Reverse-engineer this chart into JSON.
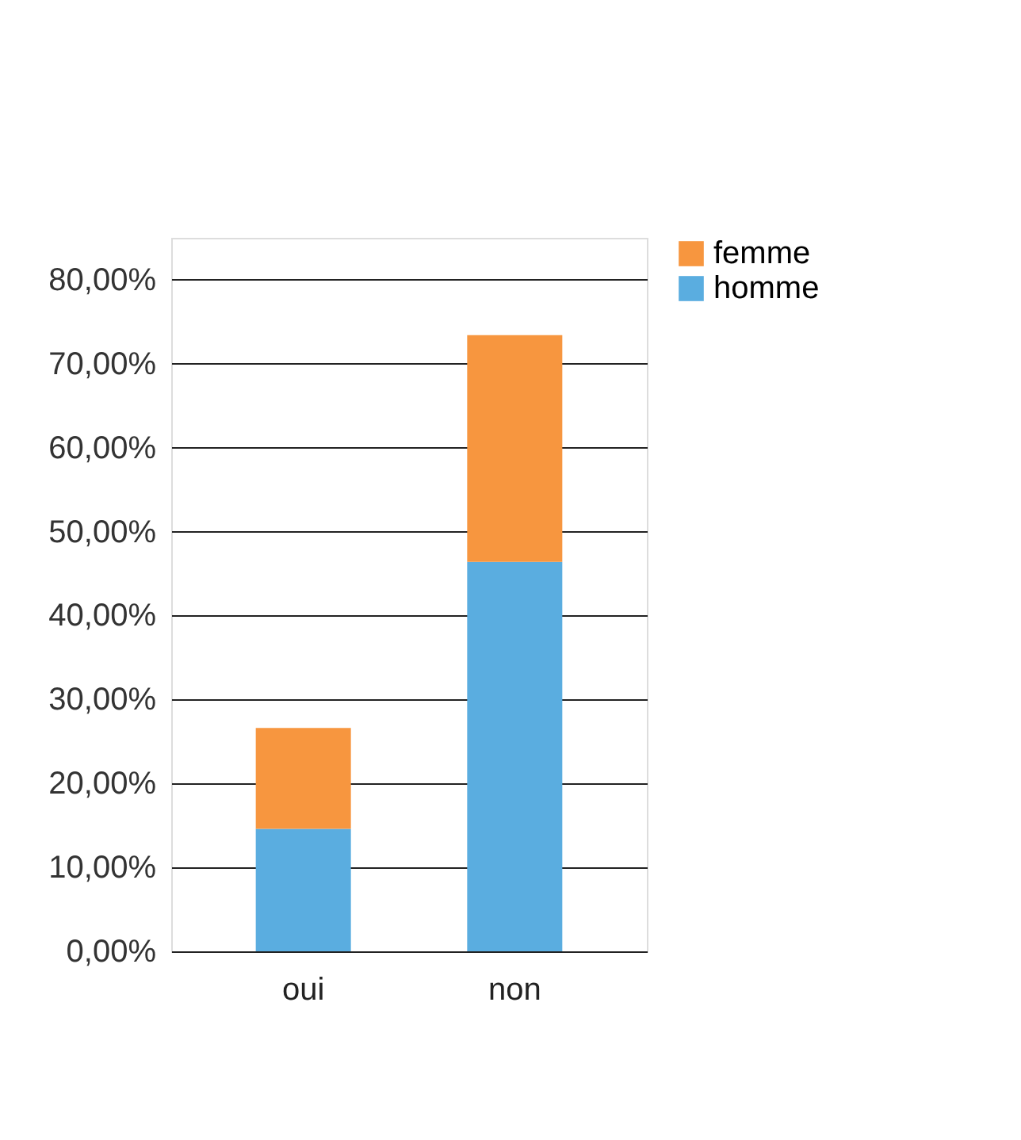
{
  "chart_data": {
    "type": "bar",
    "stacked": true,
    "categories": [
      "oui",
      "non"
    ],
    "series": [
      {
        "name": "homme",
        "color": "#5aade0",
        "values": [
          14.6,
          46.4
        ]
      },
      {
        "name": "femme",
        "color": "#f7963f",
        "values": [
          12.0,
          27.0
        ]
      }
    ],
    "ylim": [
      0,
      85
    ],
    "yticks": [
      {
        "value": 0,
        "label": "0,00%"
      },
      {
        "value": 10,
        "label": "10,00%"
      },
      {
        "value": 20,
        "label": "20,00%"
      },
      {
        "value": 30,
        "label": "30,00%"
      },
      {
        "value": 40,
        "label": "40,00%"
      },
      {
        "value": 50,
        "label": "50,00%"
      },
      {
        "value": 60,
        "label": "60,00%"
      },
      {
        "value": 70,
        "label": "70,00%"
      },
      {
        "value": 80,
        "label": "80,00%"
      }
    ],
    "grid": "y",
    "legend": "right"
  }
}
